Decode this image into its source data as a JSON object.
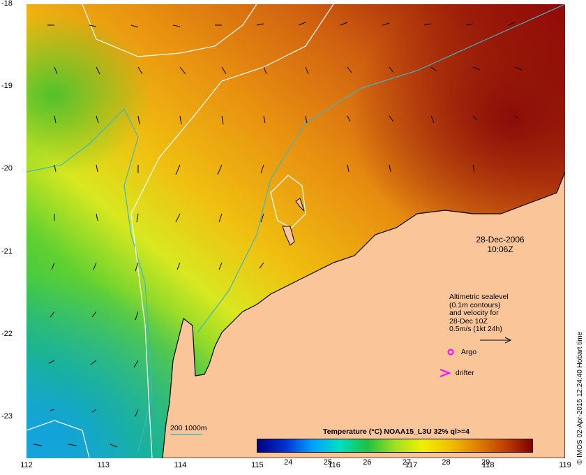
{
  "map": {
    "y_ticks": [
      {
        "label": "-18",
        "value": -18
      },
      {
        "label": "-19",
        "value": -19
      },
      {
        "label": "-20",
        "value": -20
      },
      {
        "label": "-21",
        "value": -21
      },
      {
        "label": "-22",
        "value": -22
      },
      {
        "label": "-23",
        "value": -23
      }
    ],
    "x_ticks": [
      {
        "label": "112",
        "value": 112
      },
      {
        "label": "113",
        "value": 113
      },
      {
        "label": "114",
        "value": 114
      },
      {
        "label": "115",
        "value": 115
      },
      {
        "label": "116",
        "value": 116
      },
      {
        "label": "117",
        "value": 117
      },
      {
        "label": "118",
        "value": 118
      },
      {
        "label": "119",
        "value": 119
      }
    ],
    "lon_range": [
      112,
      119
    ],
    "lat_range": [
      -23.5,
      -18
    ],
    "colors": {
      "land": "#fbc59a",
      "coast": "#000000",
      "contour_sealevel": "#ffffff",
      "contour_isobath": "#3cb8c0",
      "argo_marker": "#ff00ff",
      "drifter_marker": "#ff00ff"
    }
  },
  "timestamp": {
    "date": "28-Dec-2006",
    "time": "10:06Z"
  },
  "legend": {
    "lines": [
      "Altimetric sealevel",
      "(0.1m contours)",
      "and velocity for",
      "28-Dec 10Z",
      "0.5m/s (1kt 24h)"
    ],
    "argo_label": "Argo",
    "drifter_label": "drifter",
    "isobath_label": "200  1000m"
  },
  "colorbar": {
    "title": "Temperature (°C) NOAA15_L3U 32% ql>=4",
    "range": [
      23.2,
      30.2
    ],
    "ticks": [
      {
        "label": "24",
        "value": 24
      },
      {
        "label": "25",
        "value": 25
      },
      {
        "label": "26",
        "value": 26
      },
      {
        "label": "27",
        "value": 27
      },
      {
        "label": "28",
        "value": 28
      },
      {
        "label": "29",
        "value": 29
      }
    ]
  },
  "credit": "© IMOS 02-Apr-2015 12:24:40 Hobart time"
}
